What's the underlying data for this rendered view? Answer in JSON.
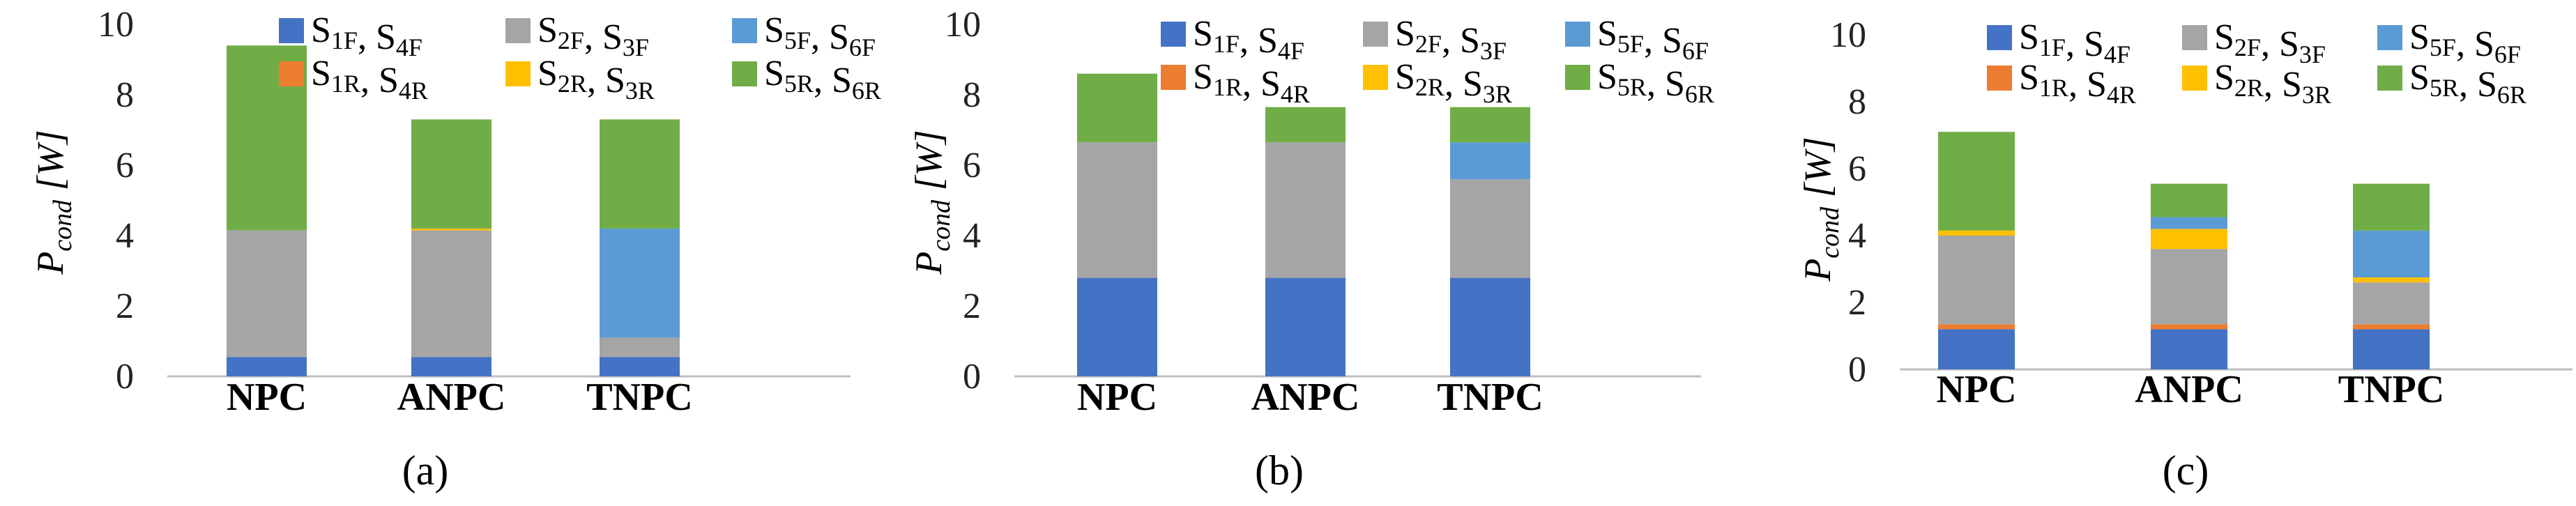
{
  "colors": {
    "blue": "#4472C4",
    "orange": "#ED7D31",
    "gray": "#A5A5A5",
    "yellow": "#FFC000",
    "lightblue": "#5B9BD5",
    "green": "#70AD47",
    "axis": "#bfbfbf"
  },
  "chart_data": [
    {
      "type": "bar",
      "stacked": true,
      "caption": "(a)",
      "ylabel": {
        "main": "P",
        "sub": "cond",
        "unit": " [W]"
      },
      "ylim": [
        0,
        10
      ],
      "yticks": [
        "0",
        "2",
        "4",
        "6",
        "8",
        "10"
      ],
      "categories": [
        "NPC",
        "ANPC",
        "TNPC"
      ],
      "legend_position": "top-right",
      "series": [
        {
          "name": "S1F, S4F",
          "legend": [
            [
              "S",
              "1F"
            ],
            [
              ", S",
              "4F"
            ]
          ],
          "color": "blue",
          "values": [
            0.55,
            0.55,
            0.55
          ]
        },
        {
          "name": "S1R, S4R",
          "legend": [
            [
              "S",
              "1R"
            ],
            [
              ", S",
              "4R"
            ]
          ],
          "color": "orange",
          "values": [
            0.0,
            0.0,
            0.0
          ]
        },
        {
          "name": "S2F, S3F",
          "legend": [
            [
              "S",
              "2F"
            ],
            [
              ", S",
              "3F"
            ]
          ],
          "color": "gray",
          "values": [
            3.6,
            3.6,
            0.55
          ]
        },
        {
          "name": "S2R, S3R",
          "legend": [
            [
              "S",
              "2R"
            ],
            [
              ", S",
              "3R"
            ]
          ],
          "color": "yellow",
          "values": [
            0.0,
            0.05,
            0.0
          ]
        },
        {
          "name": "S5F, S6F",
          "legend": [
            [
              "S",
              "5F"
            ],
            [
              ", S",
              "6F"
            ]
          ],
          "color": "lightblue",
          "values": [
            0.0,
            0.0,
            3.1
          ]
        },
        {
          "name": "S5R, S6R",
          "legend": [
            [
              "S",
              "5R"
            ],
            [
              ", S",
              "6R"
            ]
          ],
          "color": "green",
          "values": [
            5.25,
            3.1,
            3.1
          ]
        }
      ]
    },
    {
      "type": "bar",
      "stacked": true,
      "caption": "(b)",
      "ylabel": {
        "main": "P",
        "sub": "cond",
        "unit": " [W]"
      },
      "ylim": [
        0,
        10
      ],
      "yticks": [
        "0",
        "2",
        "4",
        "6",
        "8",
        "10"
      ],
      "categories": [
        "NPC",
        "ANPC",
        "TNPC"
      ],
      "legend_position": "top-right",
      "series": [
        {
          "name": "S1F, S4F",
          "legend": [
            [
              "S",
              "1F"
            ],
            [
              ", S",
              "4F"
            ]
          ],
          "color": "blue",
          "values": [
            2.8,
            2.8,
            2.8
          ]
        },
        {
          "name": "S1R, S4R",
          "legend": [
            [
              "S",
              "1R"
            ],
            [
              ", S",
              "4R"
            ]
          ],
          "color": "orange",
          "values": [
            0.0,
            0.0,
            0.0
          ]
        },
        {
          "name": "S2F, S3F",
          "legend": [
            [
              "S",
              "2F"
            ],
            [
              ", S",
              "3F"
            ]
          ],
          "color": "gray",
          "values": [
            3.85,
            3.85,
            2.8
          ]
        },
        {
          "name": "S2R, S3R",
          "legend": [
            [
              "S",
              "2R"
            ],
            [
              ", S",
              "3R"
            ]
          ],
          "color": "yellow",
          "values": [
            0.0,
            0.0,
            0.0
          ]
        },
        {
          "name": "S5F, S6F",
          "legend": [
            [
              "S",
              "5F"
            ],
            [
              ", S",
              "6F"
            ]
          ],
          "color": "lightblue",
          "values": [
            0.0,
            0.0,
            1.05
          ]
        },
        {
          "name": "S5R, S6R",
          "legend": [
            [
              "S",
              "5R"
            ],
            [
              ", S",
              "6R"
            ]
          ],
          "color": "green",
          "values": [
            1.95,
            1.0,
            1.0
          ]
        }
      ]
    },
    {
      "type": "bar",
      "stacked": true,
      "caption": "(c)",
      "ylabel": {
        "main": "P",
        "sub": "cond",
        "unit": " [W]"
      },
      "ylim": [
        0,
        10
      ],
      "yticks": [
        "0",
        "2",
        "4",
        "6",
        "8",
        "10"
      ],
      "categories": [
        "NPC",
        "ANPC",
        "TNPC"
      ],
      "legend_position": "top-right",
      "series": [
        {
          "name": "S1F, S4F",
          "legend": [
            [
              "S",
              "1F"
            ],
            [
              ", S",
              "4F"
            ]
          ],
          "color": "blue",
          "values": [
            1.2,
            1.2,
            1.2
          ]
        },
        {
          "name": "S1R, S4R",
          "legend": [
            [
              "S",
              "1R"
            ],
            [
              ", S",
              "4R"
            ]
          ],
          "color": "orange",
          "values": [
            0.15,
            0.15,
            0.15
          ]
        },
        {
          "name": "S2F, S3F",
          "legend": [
            [
              "S",
              "2F"
            ],
            [
              ", S",
              "3F"
            ]
          ],
          "color": "gray",
          "values": [
            2.65,
            2.25,
            1.25
          ]
        },
        {
          "name": "S2R, S3R",
          "legend": [
            [
              "S",
              "2R"
            ],
            [
              ", S",
              "3R"
            ]
          ],
          "color": "yellow",
          "values": [
            0.15,
            0.6,
            0.15
          ]
        },
        {
          "name": "S5F, S6F",
          "legend": [
            [
              "S",
              "5F"
            ],
            [
              ", S",
              "6F"
            ]
          ],
          "color": "lightblue",
          "values": [
            0.0,
            0.35,
            1.4
          ]
        },
        {
          "name": "S5R, S6R",
          "legend": [
            [
              "S",
              "5R"
            ],
            [
              ", S",
              "6R"
            ]
          ],
          "color": "green",
          "values": [
            2.95,
            1.0,
            1.4
          ]
        }
      ]
    }
  ]
}
